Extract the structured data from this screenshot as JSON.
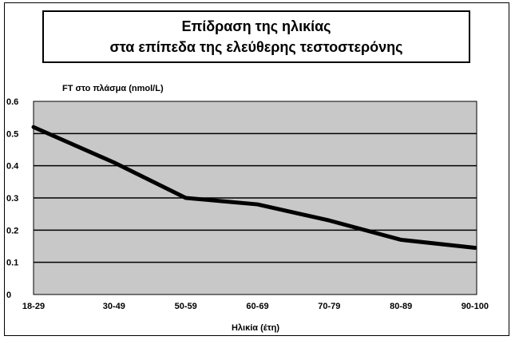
{
  "chart_data": {
    "type": "line",
    "title": [
      "Επίδραση της ηλικίας",
      "στα επίπεδα της ελεύθερης τεστοστερόνης"
    ],
    "ylabel": "FT στο πλάσμα (nmol/L)",
    "xlabel": "Ηλικία (έτη)",
    "categories": [
      "18-29",
      "30-49",
      "50-59",
      "60-69",
      "70-79",
      "80-89",
      "90-100"
    ],
    "ylim": [
      0,
      0.6
    ],
    "yticks": [
      "0",
      "0.1",
      "0.2",
      "0.3",
      "0.4",
      "0.5",
      "0.6"
    ],
    "series": [
      {
        "values": [
          0.52,
          0.41,
          0.3,
          0.28,
          0.23,
          0.17,
          0.145
        ]
      }
    ],
    "grid": true,
    "colors": {
      "plot_bg": "#c8c8c8",
      "line": "#000000",
      "grid": "#000000"
    }
  }
}
